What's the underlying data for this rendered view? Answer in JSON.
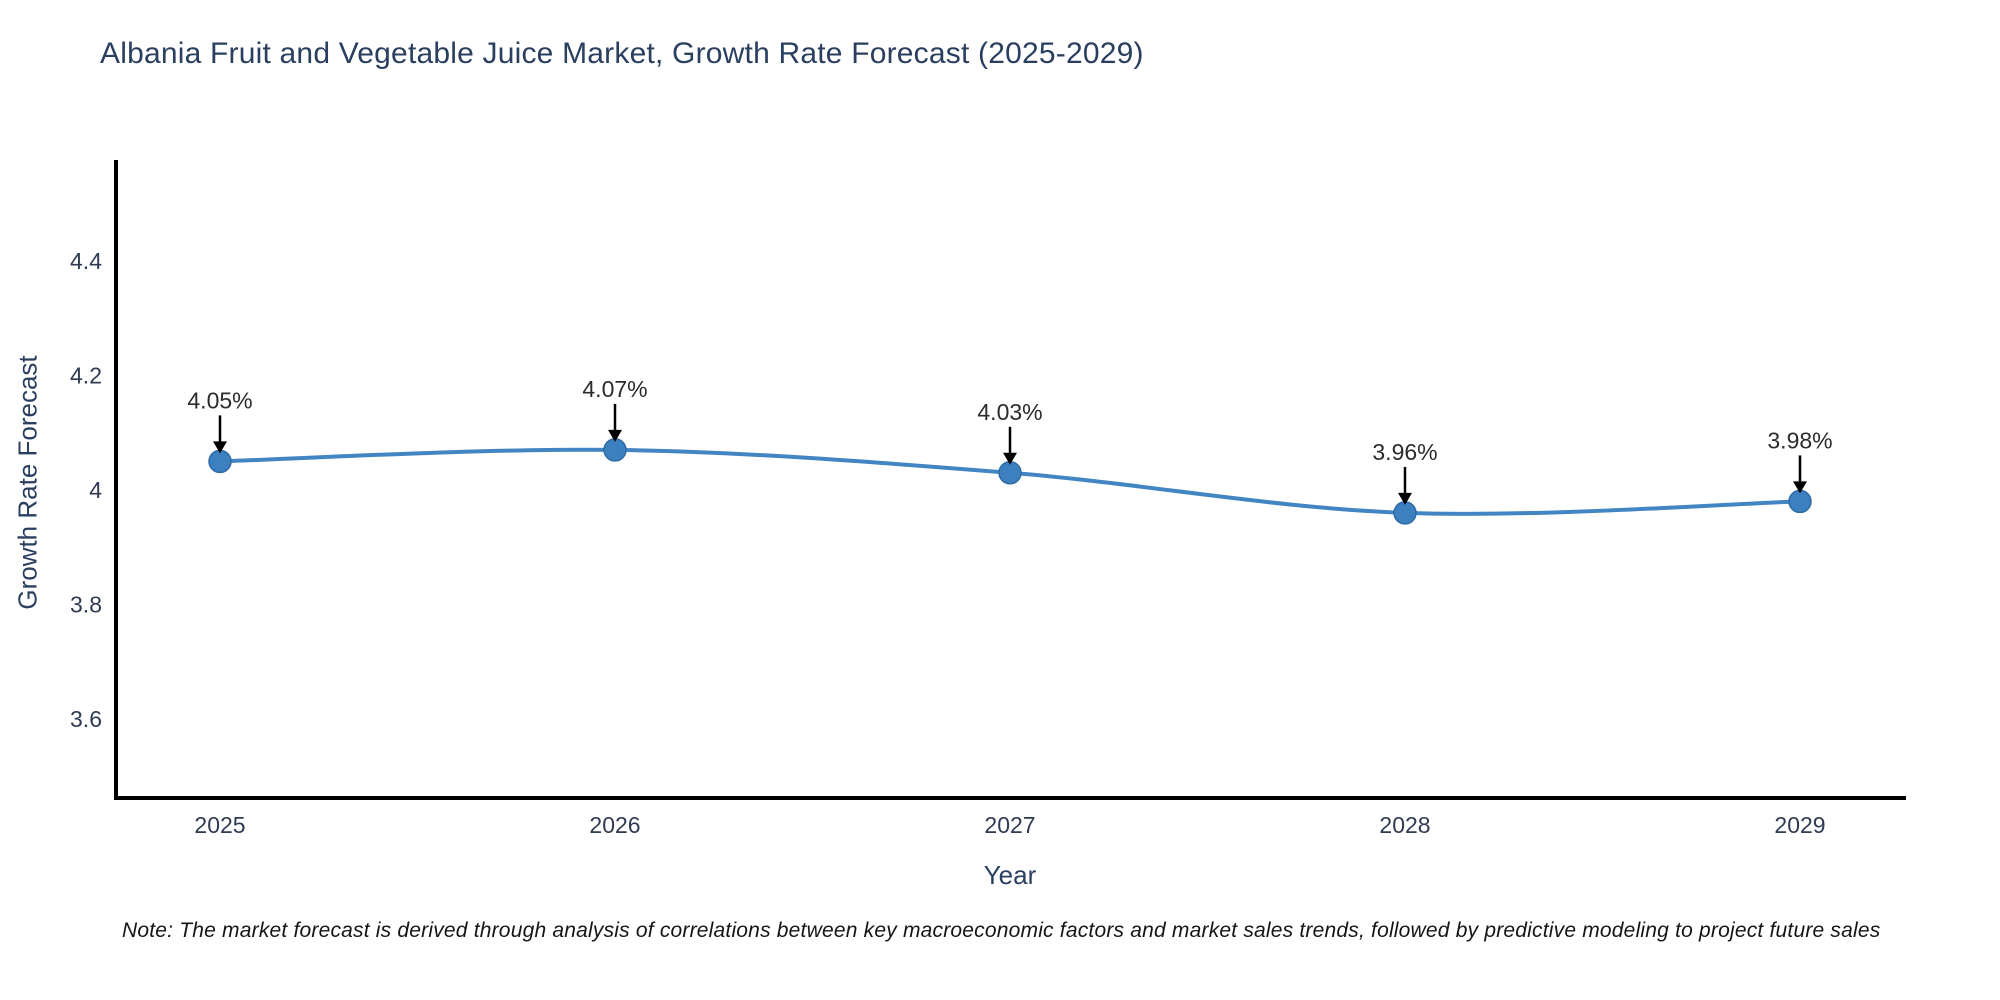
{
  "note": "Note: The market forecast is derived through analysis of correlations between key macroeconomic factors and market sales trends, followed by predictive modeling to project future sales",
  "chart_data": {
    "type": "line",
    "title": "Albania Fruit and Vegetable Juice Market, Growth Rate Forecast (2025-2029)",
    "xlabel": "Year",
    "ylabel": "Growth Rate Forecast",
    "x": [
      2025,
      2026,
      2027,
      2028,
      2029
    ],
    "series": [
      {
        "name": "Growth Rate Forecast",
        "values": [
          4.05,
          4.07,
          4.03,
          3.96,
          3.98
        ]
      }
    ],
    "point_labels": [
      "4.05%",
      "4.07%",
      "4.03%",
      "3.96%",
      "3.98%"
    ],
    "x_tick_labels": [
      "2025",
      "2026",
      "2027",
      "2028",
      "2029"
    ],
    "y_tick_values": [
      3.6,
      3.8,
      4.0,
      4.2,
      4.4
    ],
    "y_tick_labels": [
      "3.6",
      "3.8",
      "4",
      "4.2",
      "4.4"
    ],
    "ylim": [
      3.46,
      4.58
    ],
    "line_shape": "spline",
    "grid": false,
    "legend_position": "none",
    "colors": {
      "line": "#4285c3",
      "marker_fill": "#3d80bf",
      "marker_edge": "#2f6ba6",
      "axis_line": "#000000",
      "title_text": "#2a3f5f",
      "tick_text": "#2f3b52",
      "annotation_text": "#2b2b2b",
      "annotation_arrow": "#000000",
      "background": "#ffffff"
    }
  }
}
